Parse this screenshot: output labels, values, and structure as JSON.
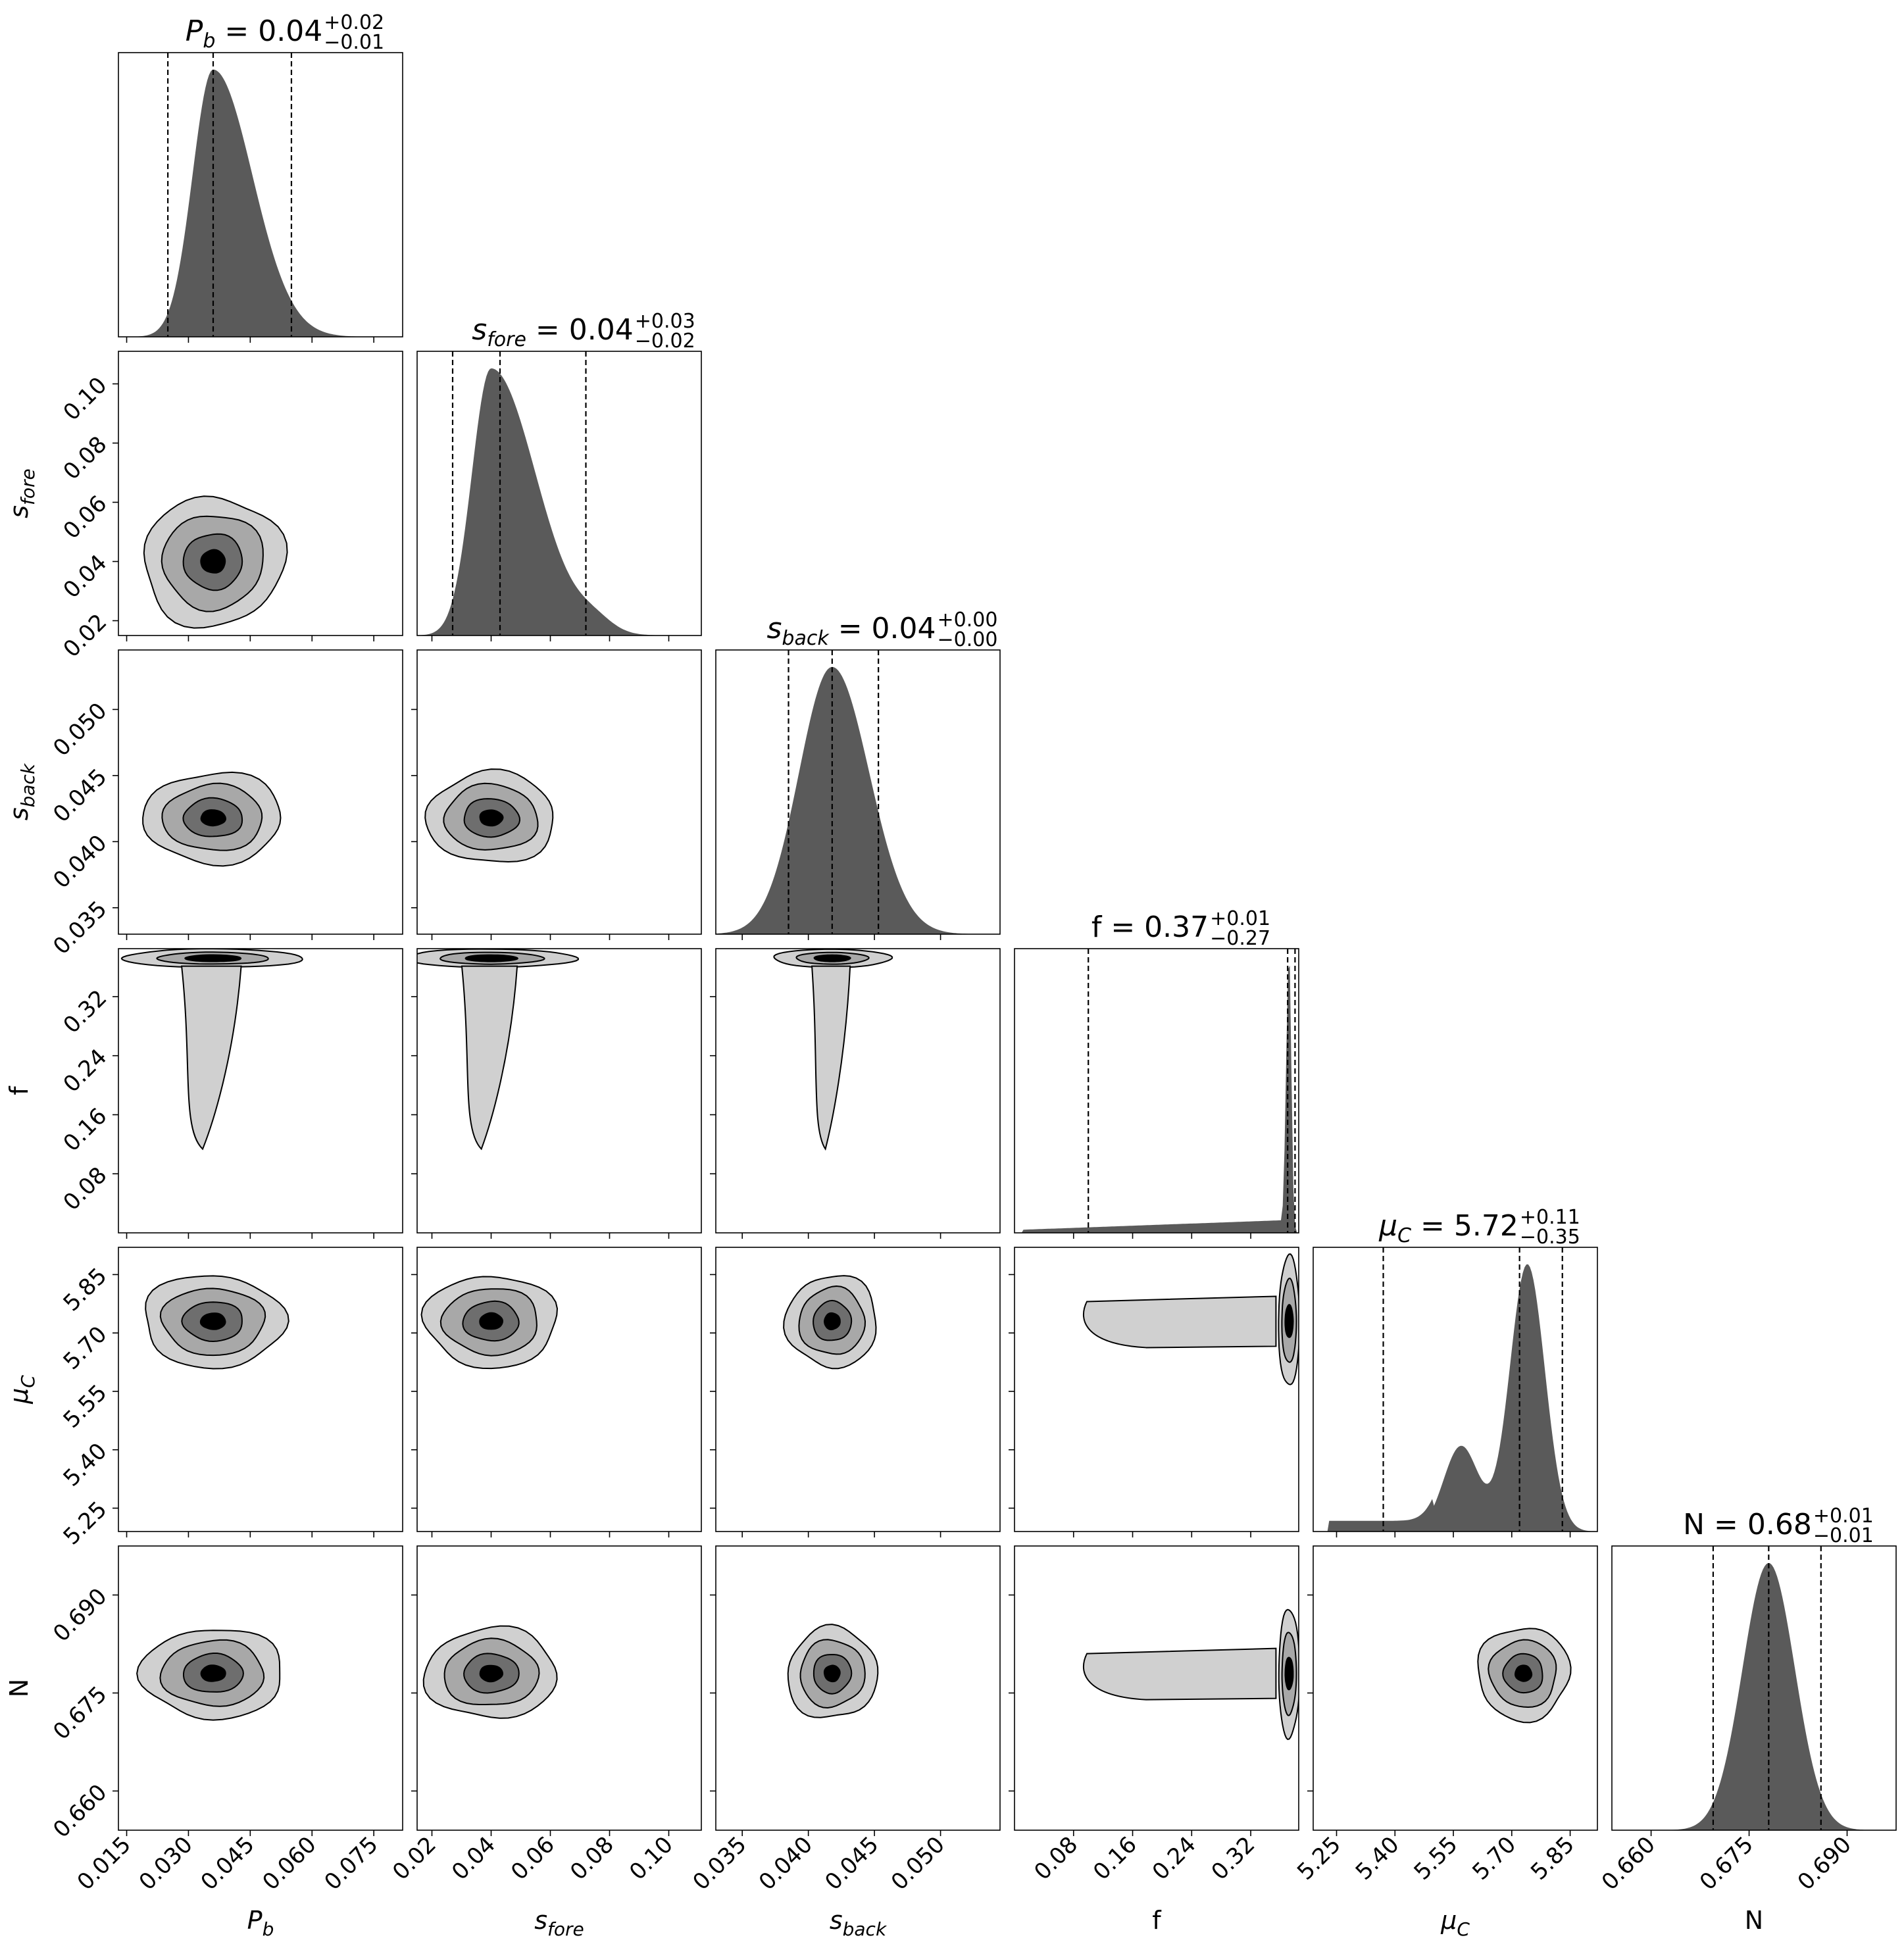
{
  "figure": {
    "type": "corner-plot",
    "colors": {
      "hist_fill": "#5a5a5a",
      "contour_fills": [
        "#d0d0d0",
        "#a8a8a8",
        "#6e6e6e",
        "#000000"
      ],
      "line": "#000000",
      "background": "#ffffff"
    }
  },
  "chart_data": {
    "type": "corner",
    "parameters": [
      {
        "key": "Pb",
        "label": "P",
        "label_sub": "b",
        "italic": true,
        "title_value": "0.04",
        "err_plus": "+0.02",
        "err_minus": "−0.01",
        "median": 0.036,
        "q16": 0.025,
        "q84": 0.055,
        "range": [
          0.013,
          0.082
        ],
        "ticks": [
          0.015,
          0.03,
          0.045,
          0.06,
          0.075
        ],
        "tick_labels": [
          "0.015",
          "0.030",
          "0.045",
          "0.060",
          "0.075"
        ],
        "hist": {
          "peak": 0.036,
          "w_left": 0.005,
          "w_right": 0.0095,
          "tail": 0.02
        }
      },
      {
        "key": "sfore",
        "label": "s",
        "label_sub": "fore",
        "italic": true,
        "title_value": "0.04",
        "err_plus": "+0.03",
        "err_minus": "−0.02",
        "median": 0.043,
        "q16": 0.027,
        "q84": 0.072,
        "range": [
          0.015,
          0.111
        ],
        "ticks": [
          0.02,
          0.04,
          0.06,
          0.08,
          0.1
        ],
        "tick_labels": [
          "0.02",
          "0.04",
          "0.06",
          "0.08",
          "0.10"
        ],
        "hist": {
          "peak": 0.04,
          "w_left": 0.0065,
          "w_right": 0.015,
          "tail": 0.03
        }
      },
      {
        "key": "sback",
        "label": "s",
        "label_sub": "back",
        "italic": true,
        "title_value": "0.04",
        "err_plus": "+0.00",
        "err_minus": "−0.00",
        "median": 0.0418,
        "q16": 0.0385,
        "q84": 0.0453,
        "range": [
          0.033,
          0.0545
        ],
        "ticks": [
          0.035,
          0.04,
          0.045,
          0.05
        ],
        "tick_labels": [
          "0.035",
          "0.040",
          "0.045",
          "0.050"
        ],
        "hist": {
          "peak": 0.0418,
          "w_left": 0.0025,
          "w_right": 0.0028,
          "tail": 0.0
        }
      },
      {
        "key": "f",
        "label": "f",
        "label_sub": "",
        "italic": false,
        "title_value": "0.37",
        "err_plus": "+0.01",
        "err_minus": "−0.27",
        "median": 0.37,
        "q16": 0.1,
        "q84": 0.38,
        "range": [
          0.0,
          0.385
        ],
        "ticks": [
          0.08,
          0.16,
          0.24,
          0.32
        ],
        "tick_labels": [
          "0.08",
          "0.16",
          "0.24",
          "0.32"
        ],
        "hist": {
          "peak": 0.372,
          "w_left": 0.004,
          "w_right": 0.003,
          "tail": 0.0
        }
      },
      {
        "key": "muC",
        "label": "μ",
        "label_sub": "C",
        "italic": true,
        "title_value": "5.72",
        "err_plus": "+0.11",
        "err_minus": "−0.35",
        "median": 5.72,
        "q16": 5.37,
        "q84": 5.83,
        "range": [
          5.19,
          5.92
        ],
        "ticks": [
          5.25,
          5.4,
          5.55,
          5.7,
          5.85
        ],
        "tick_labels": [
          "5.25",
          "5.40",
          "5.55",
          "5.70",
          "5.85"
        ],
        "hist": {
          "peak": 5.74,
          "w_left": 0.045,
          "w_right": 0.045,
          "tail": 0.0
        }
      },
      {
        "key": "N",
        "label": "N",
        "label_sub": "",
        "italic": false,
        "title_value": "0.68",
        "err_plus": "+0.01",
        "err_minus": "−0.01",
        "median": 0.678,
        "q16": 0.6695,
        "q84": 0.686,
        "range": [
          0.654,
          0.6975
        ],
        "ticks": [
          0.66,
          0.675,
          0.69
        ],
        "tick_labels": [
          "0.660",
          "0.675",
          "0.690"
        ],
        "hist": {
          "peak": 0.678,
          "w_left": 0.004,
          "w_right": 0.004,
          "tail": 0.0
        }
      }
    ],
    "joint_modes": {
      "Pb": {
        "center": 0.036,
        "width": 0.0085
      },
      "sfore": {
        "center": 0.04,
        "width": 0.011
      },
      "sback": {
        "center": 0.0418,
        "width": 0.0017
      },
      "f": {
        "center": 0.372,
        "width": 0.003
      },
      "muC": {
        "center": 5.73,
        "width": 0.06
      },
      "N": {
        "center": 0.678,
        "width": 0.0035
      }
    },
    "grid": false,
    "legend": "none"
  }
}
